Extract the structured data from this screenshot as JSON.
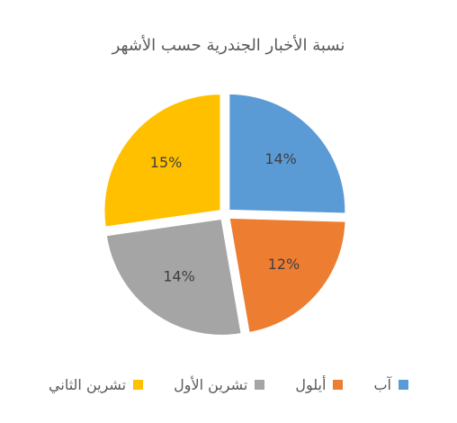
{
  "chart_data": {
    "type": "pie",
    "title": "نسبة الأخبار الجندرية حسب الأشهر",
    "categories": [
      "آب",
      "أيلول",
      "تشرين الأول",
      "تشرين الثاني"
    ],
    "values": [
      14,
      12,
      14,
      15
    ],
    "labels": [
      "14%",
      "12%",
      "14%",
      "15%"
    ],
    "colors": [
      "#5B9BD5",
      "#ED7D31",
      "#A5A5A5",
      "#FFC000"
    ],
    "legend_position": "bottom",
    "exploded": true
  }
}
